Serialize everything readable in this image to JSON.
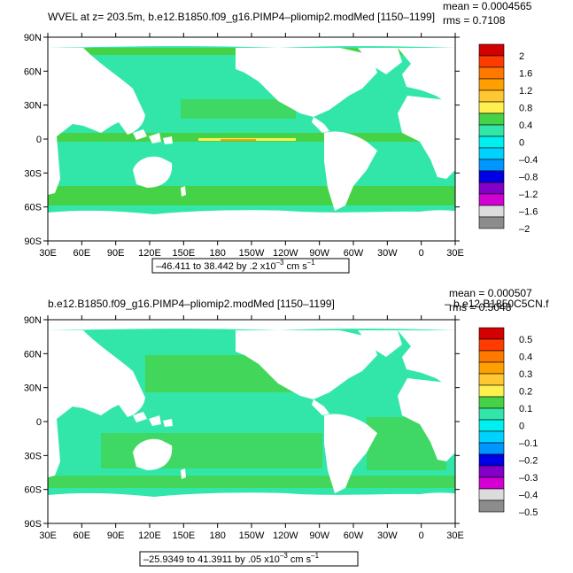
{
  "panels": [
    {
      "title": "WVEL at z= 203.5m, b.e12.B1850.f09_g16.PIMP4–pliomip2.modMed [1150–1199]",
      "mean": "mean = 0.0004565",
      "rms": "rms = 0.7108",
      "range_text": "–46.411 to 38.442 by .2 x10",
      "range_exp": "–3",
      "range_unit": "cm s",
      "range_unit_exp": "–1",
      "colorbar_labels": [
        "2",
        "1.6",
        "1.2",
        "0.8",
        "0.4",
        "0",
        "–0.4",
        "–0.8",
        "–1.2",
        "–1.6",
        "–2"
      ]
    },
    {
      "title": "b.e12.B1850.f09_g16.PIMP4–pliomip2.modMed [1150–1199]",
      "overlap_text": "– b.e12.B1850C5CN.f",
      "mean": "mean = 0.000507",
      "rms": "rms = 0.5048",
      "range_text": "–25.9349 to 41.3911 by .05 x10",
      "range_exp": "–3",
      "range_unit": "cm s",
      "range_unit_exp": "–1",
      "colorbar_labels": [
        "0.5",
        "0.4",
        "0.3",
        "0.2",
        "0.1",
        "0",
        "–0.1",
        "–0.2",
        "–0.3",
        "–0.4",
        "–0.5"
      ]
    }
  ],
  "y_ticks": [
    "90N",
    "60N",
    "30N",
    "0",
    "30S",
    "60S",
    "90S"
  ],
  "x_ticks": [
    "30E",
    "60E",
    "90E",
    "120E",
    "150E",
    "180",
    "150W",
    "120W",
    "90W",
    "60W",
    "30W",
    "0",
    "30E"
  ],
  "colorbar_colors": [
    "#d20000",
    "#ff3c00",
    "#ff7800",
    "#ffa000",
    "#ffc832",
    "#fff050",
    "#46d246",
    "#32e6aa",
    "#00f0f0",
    "#00d2ff",
    "#0096ff",
    "#0000e6",
    "#8200c8",
    "#d200d2",
    "#dcdcdc",
    "#8c8c8c"
  ],
  "ocean_color": "#32e6aa",
  "land_color": "#ffffff"
}
